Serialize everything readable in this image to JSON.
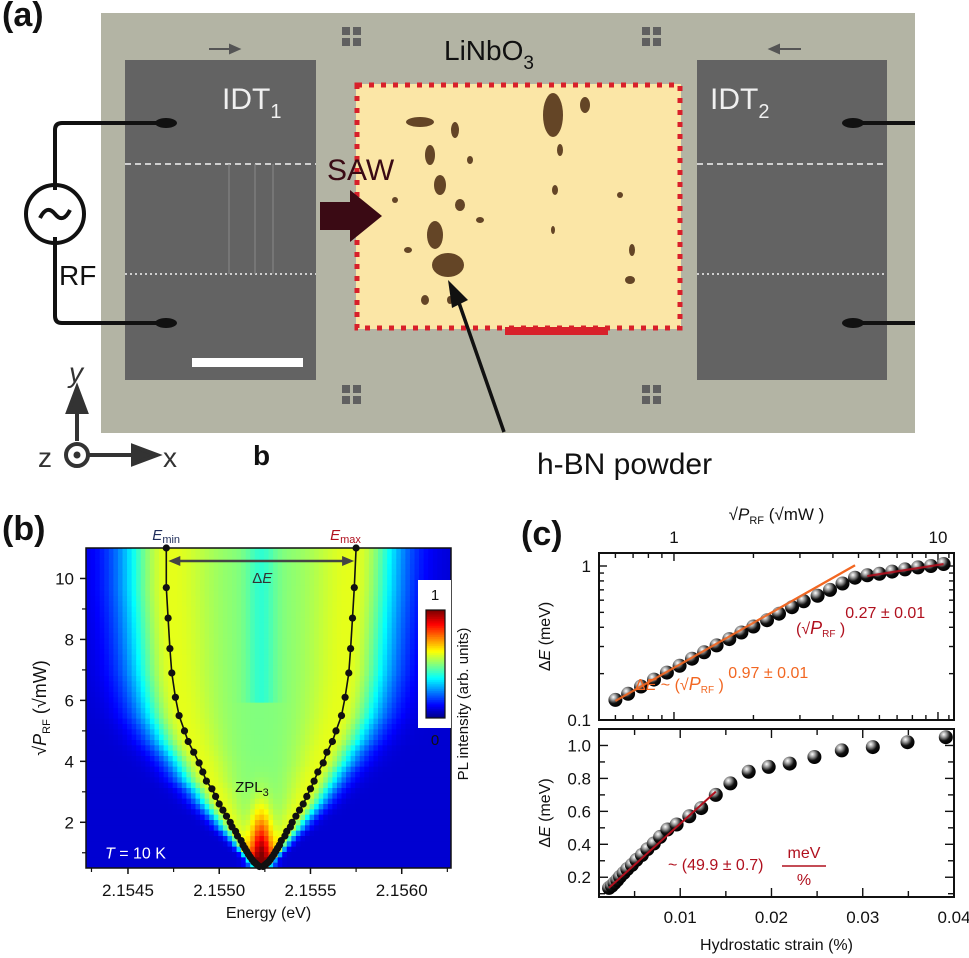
{
  "panel_a": {
    "label": "(a)",
    "substrate_label": "LiNbO",
    "substrate_sub": "3",
    "idt1_label": "IDT",
    "idt1_sub": "1",
    "idt2_label": "IDT",
    "idt2_sub": "2",
    "saw_label": "SAW",
    "rf_label": "RF",
    "powder_label": "h-BN powder",
    "sub_label_b": "b",
    "axes": {
      "x": "x",
      "y": "y",
      "z": "z"
    },
    "colors": {
      "substrate": "#b3b4a4",
      "idt": "#636363",
      "sample": "#fbe6a6",
      "frame": "#d8202a",
      "saw_arrow": "#3a0a14"
    }
  },
  "chart_data": [
    {
      "id": "b",
      "type": "heatmap",
      "panel_label": "(b)",
      "xlabel": "Energy (eV)",
      "ylabel": "√P_RF (√mW)",
      "ylabel_parts": {
        "p": "P",
        "sub": "RF",
        "unit": "mW"
      },
      "xlim": [
        2.15427,
        2.15627
      ],
      "ylim": [
        0.5,
        11.0
      ],
      "xticks": [
        2.1545,
        2.155,
        2.1555,
        2.156
      ],
      "xtick_labels": [
        "2.1545",
        "2.1550",
        "2.1555",
        "2.1560"
      ],
      "yticks": [
        2,
        4,
        6,
        8,
        10
      ],
      "ytick_labels": [
        "2",
        "4",
        "6",
        "8",
        "10"
      ],
      "colorbar": {
        "label": "PL intensity (arb. units)",
        "min_label": "0",
        "max_label": "1",
        "range": [
          0,
          1
        ],
        "colormap": "jet"
      },
      "annotations": {
        "emin": "E",
        "emin_sub": "min",
        "emax": "E",
        "emax_sub": "max",
        "delta_e": "ΔE",
        "zpl": "ZPL",
        "zpl_sub": "3",
        "temperature": "T = 10 K"
      },
      "center_energy": 2.15523,
      "series": [
        {
          "name": "E_min",
          "color": "#000000",
          "y": [
            0.55,
            0.6,
            0.65,
            0.7,
            0.78,
            0.86,
            0.95,
            1.05,
            1.15,
            1.25,
            1.4,
            1.55,
            1.7,
            1.85,
            2.0,
            2.2,
            2.4,
            2.6,
            2.85,
            3.1,
            3.35,
            3.65,
            3.95,
            4.3,
            4.65,
            5.0,
            5.5,
            6.1,
            6.9,
            7.7,
            8.7,
            9.7,
            11.0
          ],
          "x": [
            2.15522,
            2.15521,
            2.1552,
            2.15519,
            2.15518,
            2.15517,
            2.15516,
            2.15515,
            2.15514,
            2.15513,
            2.15512,
            2.1551,
            2.15509,
            2.15507,
            2.15506,
            2.15504,
            2.15502,
            2.155,
            2.15498,
            2.15496,
            2.15493,
            2.15491,
            2.15489,
            2.15486,
            2.15483,
            2.15481,
            2.15478,
            2.15476,
            2.15474,
            2.15473,
            2.15472,
            2.15471,
            2.15471
          ]
        },
        {
          "name": "E_max",
          "color": "#000000",
          "y": [
            0.55,
            0.6,
            0.65,
            0.7,
            0.78,
            0.86,
            0.95,
            1.05,
            1.15,
            1.25,
            1.4,
            1.55,
            1.7,
            1.85,
            2.0,
            2.2,
            2.4,
            2.6,
            2.85,
            3.1,
            3.35,
            3.65,
            3.95,
            4.3,
            4.65,
            5.0,
            5.5,
            6.1,
            6.9,
            7.7,
            8.7,
            9.7,
            11.0
          ],
          "x": [
            2.15524,
            2.15525,
            2.15526,
            2.15527,
            2.15528,
            2.15529,
            2.1553,
            2.15531,
            2.15532,
            2.15533,
            2.15534,
            2.15536,
            2.15537,
            2.15539,
            2.1554,
            2.15542,
            2.15544,
            2.15546,
            2.15548,
            2.1555,
            2.15552,
            2.15554,
            2.15557,
            2.15559,
            2.15562,
            2.15564,
            2.15567,
            2.15569,
            2.15571,
            2.15572,
            2.15573,
            2.15574,
            2.15575
          ]
        }
      ]
    },
    {
      "id": "c-top",
      "type": "scatter",
      "panel_label": "(c)",
      "xscale": "log",
      "yscale": "log",
      "top_xlabel": "√P_RF (√mW)",
      "xlabel_parts": {
        "p": "P",
        "sub": "RF",
        "unit": "mW"
      },
      "ylabel": "ΔE (meV)",
      "xlim": [
        0.52,
        11.5
      ],
      "ylim": [
        0.1,
        1.0
      ],
      "xticks": [
        1,
        10
      ],
      "xtick_labels": [
        "1",
        "10"
      ],
      "yticks": [
        0.1,
        1
      ],
      "ytick_labels": [
        "0.1",
        "1"
      ],
      "x": [
        0.6,
        0.67,
        0.75,
        0.84,
        0.94,
        1.05,
        1.17,
        1.3,
        1.45,
        1.62,
        1.8,
        2.0,
        2.25,
        2.5,
        2.8,
        3.1,
        3.5,
        3.9,
        4.35,
        4.85,
        5.4,
        6.0,
        6.7,
        7.5,
        8.4,
        9.4,
        10.5
      ],
      "values": [
        0.135,
        0.148,
        0.165,
        0.183,
        0.203,
        0.225,
        0.25,
        0.275,
        0.305,
        0.335,
        0.37,
        0.405,
        0.445,
        0.49,
        0.54,
        0.59,
        0.64,
        0.7,
        0.77,
        0.84,
        0.87,
        0.89,
        0.92,
        0.95,
        0.98,
        1.0,
        1.03
      ],
      "fits": [
        {
          "name": "low-power fit",
          "color": "#f26722",
          "exponent": "0.97 ± 0.01",
          "x_range": [
            0.6,
            4.85
          ],
          "slope": 0.97,
          "anchor": [
            0.6,
            0.133
          ]
        },
        {
          "name": "high-power fit",
          "color": "#b0101e",
          "exponent": "0.27 ± 0.01",
          "x_range": [
            5.4,
            10.5
          ],
          "slope": 0.27,
          "anchor": [
            5.4,
            0.86
          ]
        }
      ],
      "annotations": {
        "fit1_prefix": "ΔE ~ ",
        "fit1_p": "P",
        "fit1_sub": "RF",
        "fit1_exp": "0.97 ± 0.01",
        "fit2_p": "P",
        "fit2_sub": "RF",
        "fit2_exp": "0.27 ± 0.01"
      }
    },
    {
      "id": "c-bottom",
      "type": "scatter",
      "xlabel": "Hydrostatic strain (%)",
      "ylabel": "ΔE (meV)",
      "xlim": [
        0.0011,
        0.04
      ],
      "ylim": [
        0.08,
        1.1
      ],
      "xticks": [
        0.01,
        0.02,
        0.03,
        0.04
      ],
      "xtick_labels": [
        "0.01",
        "0.02",
        "0.03",
        "0.04"
      ],
      "yticks": [
        0.2,
        0.4,
        0.6,
        0.8,
        1.0
      ],
      "ytick_labels": [
        "0.2",
        "0.4",
        "0.6",
        "0.8",
        "1.0"
      ],
      "x": [
        0.0022,
        0.0025,
        0.0028,
        0.0031,
        0.0034,
        0.0038,
        0.0042,
        0.0047,
        0.0052,
        0.0058,
        0.0064,
        0.0071,
        0.0078,
        0.0086,
        0.0096,
        0.011,
        0.0123,
        0.0139,
        0.0155,
        0.0175,
        0.0197,
        0.022,
        0.0247,
        0.0277,
        0.0311,
        0.0349,
        0.0391
      ],
      "values": [
        0.135,
        0.148,
        0.165,
        0.183,
        0.203,
        0.225,
        0.25,
        0.275,
        0.305,
        0.335,
        0.37,
        0.405,
        0.445,
        0.49,
        0.52,
        0.57,
        0.62,
        0.7,
        0.77,
        0.84,
        0.87,
        0.89,
        0.93,
        0.97,
        0.99,
        1.02,
        1.05
      ],
      "fit": {
        "color": "#b0101e",
        "label_prefix": "~ (49.9 ± 0.7)",
        "label_num": "meV",
        "label_den": "%",
        "slope": 49.9,
        "x_range": [
          0.0022,
          0.0139
        ],
        "intercept": 0.026
      }
    }
  ]
}
